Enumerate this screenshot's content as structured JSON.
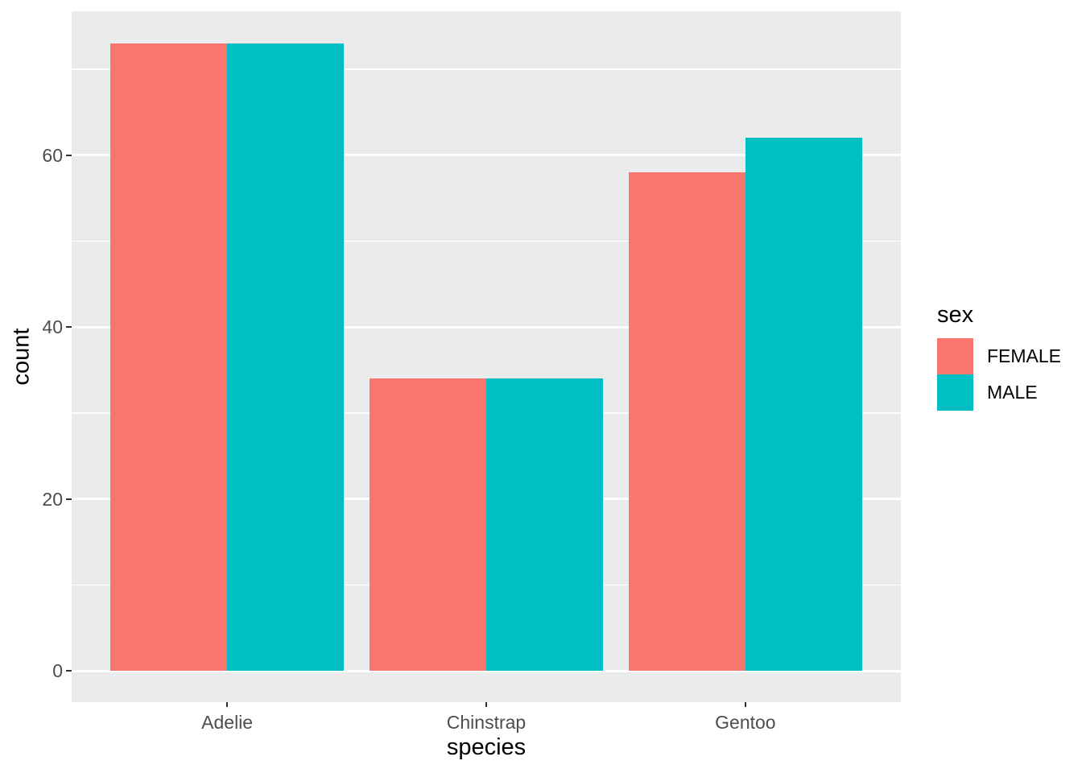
{
  "figure": {
    "background": "#FFFFFF",
    "panel_background": "#EBEBEB",
    "grid_color": "#FFFFFF",
    "tick_mark_color": "#333333",
    "tick_label_color": "#4D4D4D",
    "axis_title_color": "#000000"
  },
  "chart_data": {
    "type": "bar",
    "bar_grouping": "dodge",
    "title": "",
    "xlabel": "species",
    "ylabel": "count",
    "categories": [
      "Adelie",
      "Chinstrap",
      "Gentoo"
    ],
    "series": [
      {
        "name": "FEMALE",
        "color": "#F8766D",
        "values": [
          73,
          34,
          58
        ]
      },
      {
        "name": "MALE",
        "color": "#00BFC4",
        "values": [
          73,
          34,
          62
        ]
      }
    ],
    "y_major_ticks": [
      0,
      20,
      40,
      60
    ],
    "y_minor_gridlines": [
      10,
      30,
      50,
      70
    ],
    "ylim": [
      -3.8,
      76.8
    ],
    "grid": true,
    "legend": {
      "title": "sex",
      "position": "right",
      "entries": [
        "FEMALE",
        "MALE"
      ]
    }
  }
}
